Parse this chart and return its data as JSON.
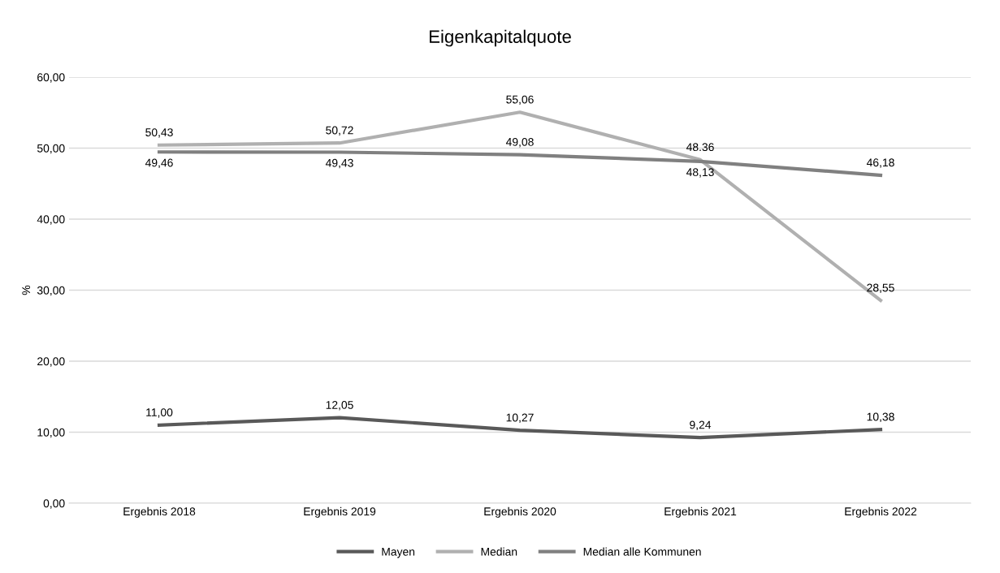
{
  "chart_data": {
    "type": "line",
    "title": "Eigenkapitalquote",
    "ylabel": "%",
    "categories": [
      "Ergebnis 2018",
      "Ergebnis 2019",
      "Ergebnis 2020",
      "Ergebnis 2021",
      "Ergebnis 2022"
    ],
    "series": [
      {
        "name": "Mayen",
        "color": "#595959",
        "values": [
          11.0,
          12.05,
          10.27,
          9.24,
          10.38
        ],
        "value_labels": [
          "11,00",
          "12,05",
          "10,27",
          "9,24",
          "10,38"
        ]
      },
      {
        "name": "Median",
        "color": "#b0b0b0",
        "values": [
          50.43,
          50.72,
          55.06,
          48.36,
          28.55
        ],
        "value_labels": [
          "50,43",
          "50,72",
          "55,06",
          "48.36",
          "28,55"
        ]
      },
      {
        "name": "Median alle Kommunen",
        "color": "#808080",
        "values": [
          49.46,
          49.43,
          49.08,
          48.13,
          46.18
        ],
        "value_labels": [
          "49,46",
          "49,43",
          "49,08",
          "48,13",
          "46,18"
        ]
      }
    ],
    "ylim": [
      0,
      60
    ],
    "yticks": [
      {
        "value": 0,
        "label": "0,00"
      },
      {
        "value": 10,
        "label": "10,00"
      },
      {
        "value": 20,
        "label": "20,00"
      },
      {
        "value": 30,
        "label": "30,00"
      },
      {
        "value": 40,
        "label": "40,00"
      },
      {
        "value": 50,
        "label": "50,00"
      },
      {
        "value": 60,
        "label": "60,00"
      }
    ],
    "grid": "y",
    "legend": "bottom",
    "marker": "none",
    "line_style": "solid"
  }
}
